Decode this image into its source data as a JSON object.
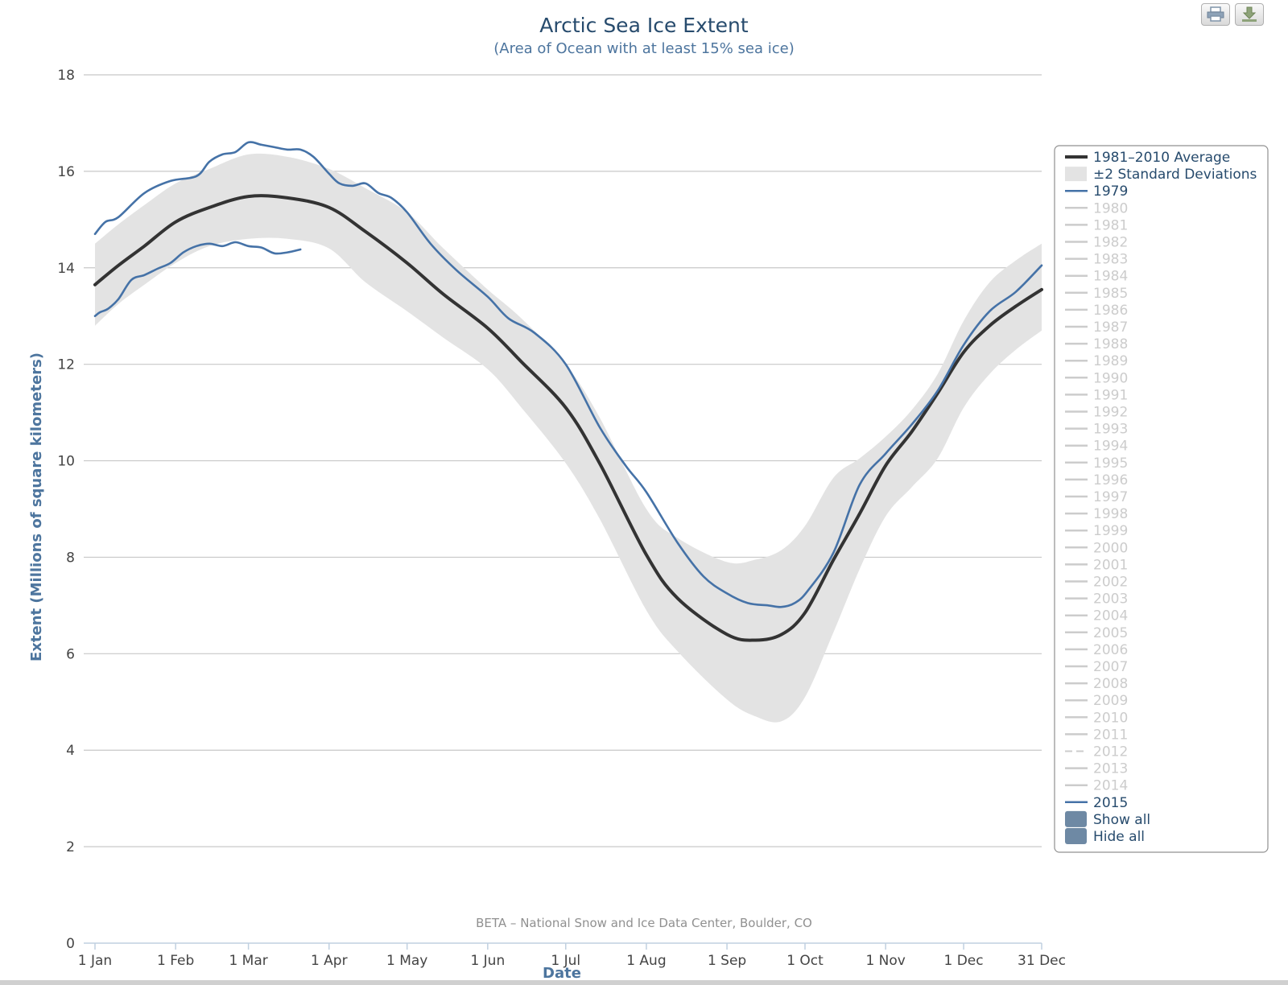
{
  "toolbar": {
    "print_icon": "print-icon",
    "download_icon": "download-icon"
  },
  "chart_data": {
    "type": "line",
    "title": "Arctic Sea Ice Extent",
    "subtitle": "(Area of Ocean with at least 15% sea ice)",
    "xlabel": "Date",
    "ylabel": "Extent (Millions of square kilometers)",
    "credits": "BETA – National Snow and Ice Data Center, Boulder, CO",
    "ylim": [
      0,
      18
    ],
    "yticks": [
      0,
      2,
      4,
      6,
      8,
      10,
      12,
      14,
      16,
      18
    ],
    "xlim": [
      "1 Jan",
      "31 Dec"
    ],
    "xticks": [
      {
        "label": "1 Jan",
        "day": 1
      },
      {
        "label": "1 Feb",
        "day": 32
      },
      {
        "label": "1 Mar",
        "day": 60
      },
      {
        "label": "1 Apr",
        "day": 91
      },
      {
        "label": "1 May",
        "day": 121
      },
      {
        "label": "1 Jun",
        "day": 152
      },
      {
        "label": "1 Jul",
        "day": 182
      },
      {
        "label": "1 Aug",
        "day": 213
      },
      {
        "label": "1 Sep",
        "day": 244
      },
      {
        "label": "1 Oct",
        "day": 274
      },
      {
        "label": "1 Nov",
        "day": 305
      },
      {
        "label": "1 Dec",
        "day": 335
      },
      {
        "label": "31 Dec",
        "day": 365
      }
    ],
    "grid": true,
    "legend_position": "right",
    "colors": {
      "average": "#333333",
      "band": "#e3e3e3",
      "year": "#4572a7",
      "inactive": "#cccccc"
    },
    "series": [
      {
        "name": "1981–2010 Average",
        "day": [
          1,
          10,
          20,
          32,
          45,
          60,
          75,
          91,
          105,
          121,
          135,
          152,
          165,
          182,
          195,
          213,
          225,
          244,
          255,
          265,
          274,
          285,
          295,
          305,
          315,
          325,
          335,
          345,
          355,
          365
        ],
        "values": [
          13.65,
          14.05,
          14.45,
          14.95,
          15.25,
          15.48,
          15.45,
          15.25,
          14.75,
          14.1,
          13.45,
          12.75,
          12.05,
          11.1,
          9.95,
          8.05,
          7.15,
          6.4,
          6.28,
          6.4,
          6.85,
          7.95,
          8.9,
          9.9,
          10.6,
          11.4,
          12.25,
          12.8,
          13.2,
          13.55
        ]
      },
      {
        "name": "±2 Standard Deviations",
        "type": "area",
        "day": [
          1,
          10,
          20,
          32,
          45,
          60,
          75,
          91,
          105,
          121,
          135,
          152,
          165,
          182,
          195,
          213,
          225,
          244,
          255,
          265,
          274,
          285,
          295,
          305,
          315,
          325,
          335,
          345,
          355,
          365
        ],
        "lower": [
          12.8,
          13.25,
          13.65,
          14.1,
          14.45,
          14.6,
          14.6,
          14.4,
          13.7,
          13.1,
          12.55,
          11.9,
          11.1,
          9.95,
          8.8,
          6.9,
          6.05,
          5.05,
          4.7,
          4.6,
          5.1,
          6.45,
          7.75,
          8.85,
          9.45,
          10.05,
          11.1,
          11.8,
          12.3,
          12.7
        ],
        "upper": [
          14.5,
          14.9,
          15.3,
          15.75,
          16.05,
          16.35,
          16.3,
          16.05,
          15.65,
          15.15,
          14.4,
          13.55,
          12.95,
          12.0,
          10.9,
          9.0,
          8.4,
          7.9,
          7.95,
          8.15,
          8.65,
          9.65,
          10.05,
          10.5,
          11.05,
          11.8,
          12.9,
          13.7,
          14.15,
          14.5
        ]
      },
      {
        "name": "1979",
        "day": [
          1,
          3,
          6,
          10,
          15,
          20,
          25,
          30,
          35,
          40,
          45,
          50,
          55,
          60,
          65,
          70,
          75,
          80
        ],
        "values": [
          13.0,
          13.08,
          13.15,
          13.35,
          13.75,
          13.85,
          13.98,
          14.1,
          14.32,
          14.45,
          14.5,
          14.45,
          14.53,
          14.45,
          14.42,
          14.3,
          14.32,
          14.38
        ]
      },
      {
        "name": "2015",
        "day": [
          1,
          5,
          10,
          20,
          30,
          40,
          45,
          50,
          55,
          60,
          65,
          70,
          75,
          80,
          85,
          91,
          95,
          100,
          105,
          110,
          115,
          121,
          130,
          140,
          152,
          160,
          170,
          182,
          195,
          205,
          213,
          225,
          235,
          244,
          252,
          260,
          265,
          270,
          275,
          285,
          295,
          305,
          315,
          325,
          335,
          345,
          355,
          365
        ],
        "values": [
          14.7,
          14.95,
          15.05,
          15.55,
          15.8,
          15.9,
          16.2,
          16.35,
          16.4,
          16.6,
          16.55,
          16.5,
          16.45,
          16.45,
          16.3,
          15.95,
          15.75,
          15.7,
          15.75,
          15.55,
          15.45,
          15.15,
          14.5,
          13.95,
          13.4,
          12.95,
          12.65,
          12.0,
          10.7,
          9.9,
          9.35,
          8.3,
          7.6,
          7.25,
          7.05,
          7.0,
          6.97,
          7.05,
          7.3,
          8.1,
          9.5,
          10.15,
          10.75,
          11.45,
          12.4,
          13.1,
          13.5,
          14.05
        ]
      }
    ],
    "legend": [
      {
        "label": "1981–2010 Average",
        "kind": "avg",
        "active": true
      },
      {
        "label": "±2 Standard Deviations",
        "kind": "band",
        "active": true
      },
      {
        "label": "1979",
        "kind": "line",
        "active": true
      },
      {
        "label": "1980",
        "kind": "line",
        "active": false
      },
      {
        "label": "1981",
        "kind": "line",
        "active": false
      },
      {
        "label": "1982",
        "kind": "line",
        "active": false
      },
      {
        "label": "1983",
        "kind": "line",
        "active": false
      },
      {
        "label": "1984",
        "kind": "line",
        "active": false
      },
      {
        "label": "1985",
        "kind": "line",
        "active": false
      },
      {
        "label": "1986",
        "kind": "line",
        "active": false
      },
      {
        "label": "1987",
        "kind": "line",
        "active": false
      },
      {
        "label": "1988",
        "kind": "line",
        "active": false
      },
      {
        "label": "1989",
        "kind": "line",
        "active": false
      },
      {
        "label": "1990",
        "kind": "line",
        "active": false
      },
      {
        "label": "1991",
        "kind": "line",
        "active": false
      },
      {
        "label": "1992",
        "kind": "line",
        "active": false
      },
      {
        "label": "1993",
        "kind": "line",
        "active": false
      },
      {
        "label": "1994",
        "kind": "line",
        "active": false
      },
      {
        "label": "1995",
        "kind": "line",
        "active": false
      },
      {
        "label": "1996",
        "kind": "line",
        "active": false
      },
      {
        "label": "1997",
        "kind": "line",
        "active": false
      },
      {
        "label": "1998",
        "kind": "line",
        "active": false
      },
      {
        "label": "1999",
        "kind": "line",
        "active": false
      },
      {
        "label": "2000",
        "kind": "line",
        "active": false
      },
      {
        "label": "2001",
        "kind": "line",
        "active": false
      },
      {
        "label": "2002",
        "kind": "line",
        "active": false
      },
      {
        "label": "2003",
        "kind": "line",
        "active": false
      },
      {
        "label": "2004",
        "kind": "line",
        "active": false
      },
      {
        "label": "2005",
        "kind": "line",
        "active": false
      },
      {
        "label": "2006",
        "kind": "line",
        "active": false
      },
      {
        "label": "2007",
        "kind": "line",
        "active": false
      },
      {
        "label": "2008",
        "kind": "line",
        "active": false
      },
      {
        "label": "2009",
        "kind": "line",
        "active": false
      },
      {
        "label": "2010",
        "kind": "line",
        "active": false
      },
      {
        "label": "2011",
        "kind": "line",
        "active": false
      },
      {
        "label": "2012",
        "kind": "dash",
        "active": false
      },
      {
        "label": "2013",
        "kind": "line",
        "active": false
      },
      {
        "label": "2014",
        "kind": "line",
        "active": false
      },
      {
        "label": "2015",
        "kind": "line",
        "active": true
      },
      {
        "label": "Show all",
        "kind": "button",
        "active": true
      },
      {
        "label": "Hide all",
        "kind": "button",
        "active": true
      }
    ]
  }
}
